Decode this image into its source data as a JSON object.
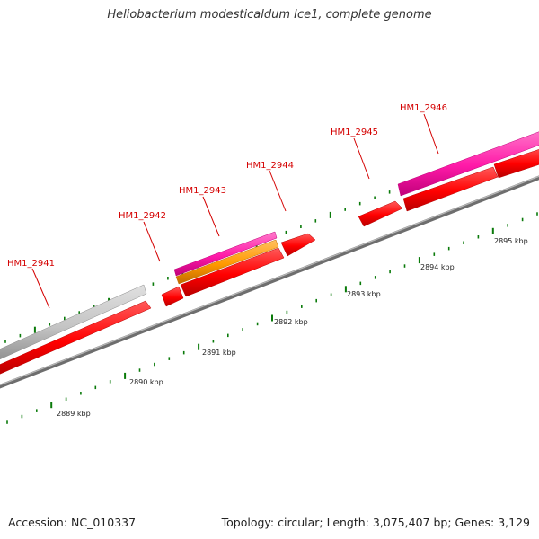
{
  "title": "Heliobacterium modesticaldum Ice1, complete genome",
  "footer": {
    "accession": "Accession: NC_010337",
    "summary": "Topology: circular; Length: 3,075,407 bp; Genes: 3,129"
  },
  "colors": {
    "cds": "#ff0000",
    "cds_light": "#ff4a4a",
    "cds_dark": "#b80000",
    "gene_pink": "#ff1aa8",
    "gene_orange": "#ff9a00",
    "pseudo_grey": "#c4c4c4",
    "backbone": "#7a7a7a",
    "tick_green": "#0a7a0a",
    "label_red": "#d40000"
  },
  "scale_labels": [
    "2889 kbp",
    "2890 kbp",
    "2891 kbp",
    "2892 kbp",
    "2893 kbp",
    "2894 kbp",
    "2895 kbp"
  ],
  "gene_labels": [
    "HM1_2941",
    "HM1_2942",
    "HM1_2943",
    "HM1_2944",
    "HM1_2945",
    "HM1_2946"
  ]
}
